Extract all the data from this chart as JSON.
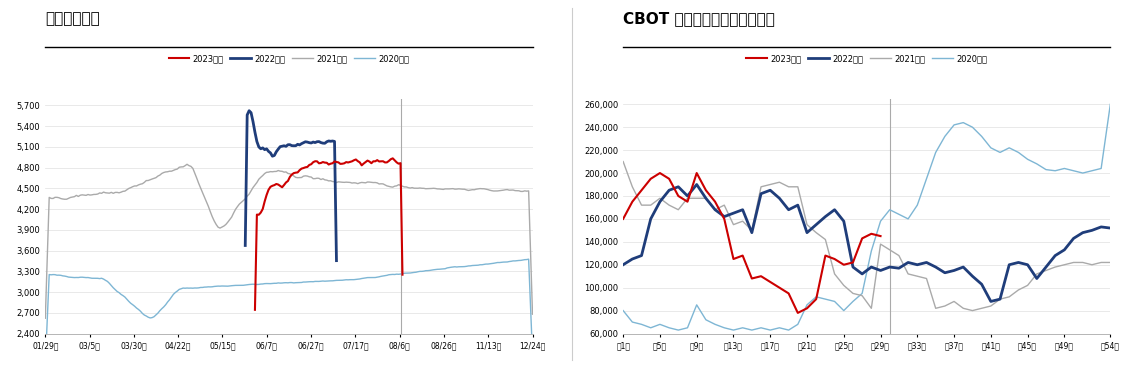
{
  "left_title": "大豆到岸成本",
  "right_title": "CBOT 大豆投机基金多头净持仓",
  "left_xlabel_ticks": [
    "01/29日",
    "03/5日",
    "03/30日",
    "04/22日",
    "05/15日",
    "06/7日",
    "06/27日",
    "07/17日",
    "08/6日",
    "08/26日",
    "11/13日",
    "12/24日"
  ],
  "left_ylim": [
    2400,
    5800
  ],
  "left_yticks": [
    2400,
    2700,
    3000,
    3300,
    3600,
    3900,
    4200,
    4500,
    4800,
    5100,
    5400,
    5700
  ],
  "right_xlabel_ticks": [
    "第1周",
    "第5周",
    "第9周",
    "第13周",
    "第17周",
    "第21周",
    "第25周",
    "第29周",
    "第33周",
    "第37周",
    "第41周",
    "第45周",
    "第49周",
    "第54周"
  ],
  "right_ylim": [
    60000,
    265000
  ],
  "right_yticks": [
    60000,
    80000,
    100000,
    120000,
    140000,
    160000,
    180000,
    200000,
    220000,
    240000,
    260000
  ],
  "legend_labels": [
    "2023年度",
    "2022年度",
    "2021年度",
    "2020年度"
  ],
  "colors": {
    "2023": "#cc0000",
    "2022": "#1f3d7a",
    "2021": "#aaaaaa",
    "2020": "#7eb6d4"
  },
  "line_widths": {
    "2023": 1.5,
    "2022": 2.0,
    "2021": 1.0,
    "2020": 1.0
  }
}
